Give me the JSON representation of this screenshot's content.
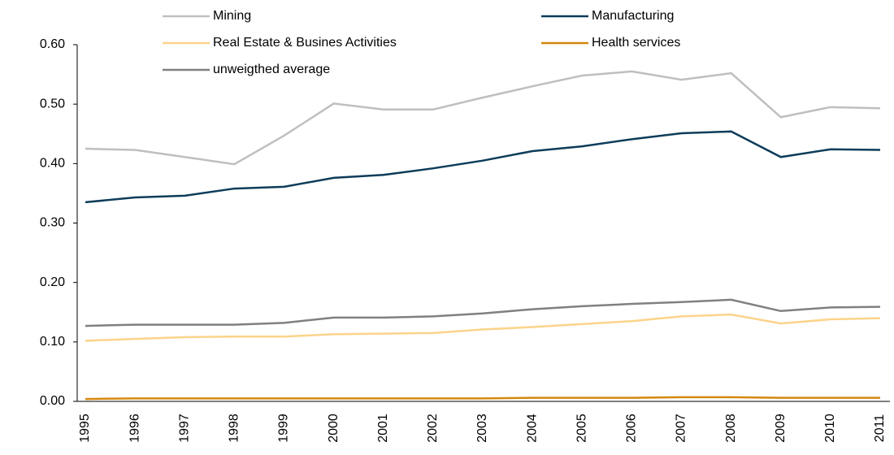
{
  "chart_data": {
    "type": "line",
    "categories": [
      "1995",
      "1996",
      "1997",
      "1998",
      "1999",
      "2000",
      "2001",
      "2002",
      "2003",
      "2004",
      "2005",
      "2006",
      "2007",
      "2008",
      "2009",
      "2010",
      "2011"
    ],
    "series": [
      {
        "name": "Mining",
        "color": "#bfbfbf",
        "values": [
          0.425,
          0.423,
          0.411,
          0.399,
          0.447,
          0.501,
          0.491,
          0.491,
          0.511,
          0.53,
          0.548,
          0.555,
          0.541,
          0.552,
          0.478,
          0.495,
          0.493
        ]
      },
      {
        "name": "Manufacturing",
        "color": "#0d3c5a",
        "values": [
          0.335,
          0.343,
          0.346,
          0.358,
          0.361,
          0.376,
          0.381,
          0.392,
          0.405,
          0.421,
          0.429,
          0.441,
          0.451,
          0.454,
          0.411,
          0.424,
          0.423
        ]
      },
      {
        "name": "Real Estate & Busines Activities",
        "color": "#fcd38a",
        "values": [
          0.102,
          0.105,
          0.108,
          0.109,
          0.109,
          0.113,
          0.114,
          0.115,
          0.121,
          0.125,
          0.13,
          0.135,
          0.143,
          0.146,
          0.131,
          0.138,
          0.14
        ]
      },
      {
        "name": "Health services",
        "color": "#d4880e",
        "values": [
          0.004,
          0.005,
          0.005,
          0.005,
          0.005,
          0.005,
          0.005,
          0.005,
          0.005,
          0.006,
          0.006,
          0.006,
          0.007,
          0.007,
          0.006,
          0.006,
          0.006
        ]
      },
      {
        "name": "unweigthed average",
        "color": "#808080",
        "values": [
          0.127,
          0.129,
          0.129,
          0.129,
          0.132,
          0.141,
          0.141,
          0.143,
          0.148,
          0.155,
          0.16,
          0.164,
          0.167,
          0.171,
          0.152,
          0.158,
          0.159
        ]
      }
    ],
    "ylim": [
      0,
      0.6
    ],
    "yticks": [
      {
        "value": 0,
        "label": "0.00"
      },
      {
        "value": 0.1,
        "label": "0.10"
      },
      {
        "value": 0.2,
        "label": "0.20"
      },
      {
        "value": 0.3,
        "label": "0.30"
      },
      {
        "value": 0.4,
        "label": "0.40"
      },
      {
        "value": 0.5,
        "label": "0.50"
      },
      {
        "value": 0.6,
        "label": "0.60"
      }
    ],
    "grid": false
  }
}
